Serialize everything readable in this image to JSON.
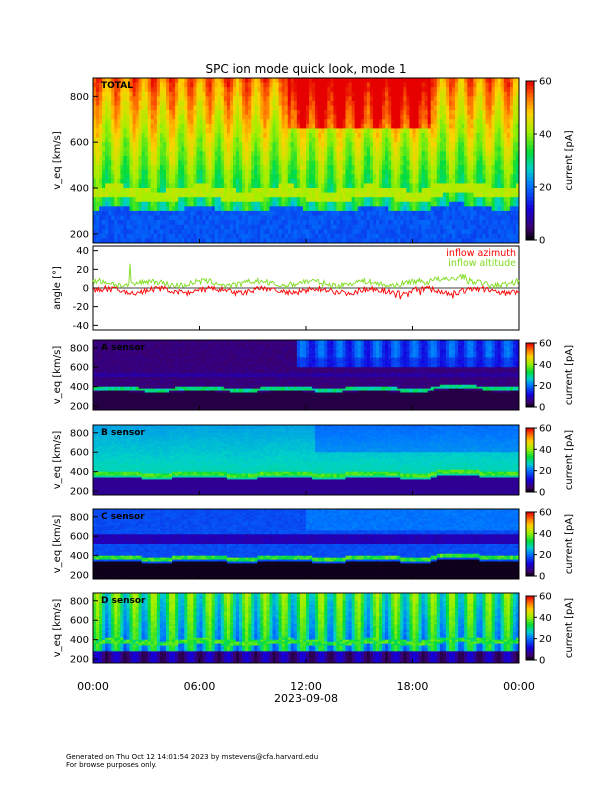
{
  "title": "SPC ion mode quick look, mode 1",
  "footer": {
    "generated": "Generated on Thu Oct 12 14:01:54 2023 by mstevens@cfa.harvard.edu",
    "note": "For browse purposes only."
  },
  "chart_data": [
    {
      "type": "heatmap",
      "panel": "total",
      "label": "TOTAL",
      "ylabel": "v_eq [km/s]",
      "yticks": [
        "200",
        "400",
        "600",
        "800"
      ],
      "ylim": [
        160,
        880
      ],
      "colorbar": {
        "label": "current [pA]",
        "ticks": [
          "0",
          "20",
          "40",
          "60"
        ],
        "range": [
          0,
          60
        ]
      },
      "description_values": {
        "core_speed_kms": 380,
        "background_low_speed_pA": 5,
        "high_speed_pA": 50
      }
    },
    {
      "type": "line",
      "panel": "angle",
      "ylabel": "angle [°]",
      "yticks": [
        "40",
        "20",
        "0",
        "-20",
        "-40"
      ],
      "ylim": [
        -45,
        45
      ],
      "series": [
        {
          "name": "inflow azimuth",
          "color": "#ff0000",
          "mean": -3,
          "spread": 4
        },
        {
          "name": "inflow altitude",
          "color": "#7fdc1e",
          "mean": 5,
          "spread": 4
        }
      ]
    },
    {
      "type": "heatmap",
      "panel": "A",
      "label": "A sensor",
      "ylabel": "v_eq [km/s]",
      "yticks": [
        "200",
        "400",
        "600",
        "800"
      ],
      "ylim": [
        160,
        880
      ],
      "colorbar": {
        "label": "current [pA]",
        "ticks": [
          "0",
          "20",
          "40",
          "60"
        ],
        "range": [
          0,
          60
        ]
      }
    },
    {
      "type": "heatmap",
      "panel": "B",
      "label": "B sensor",
      "ylabel": "v_eq [km/s]",
      "yticks": [
        "200",
        "400",
        "600",
        "800"
      ],
      "ylim": [
        160,
        880
      ],
      "colorbar": {
        "label": "current [pA]",
        "ticks": [
          "0",
          "20",
          "40",
          "60"
        ],
        "range": [
          0,
          60
        ]
      }
    },
    {
      "type": "heatmap",
      "panel": "C",
      "label": "C sensor",
      "ylabel": "v_eq [km/s]",
      "yticks": [
        "200",
        "400",
        "600",
        "800"
      ],
      "ylim": [
        160,
        880
      ],
      "colorbar": {
        "label": "current [pA]",
        "ticks": [
          "0",
          "20",
          "40",
          "60"
        ],
        "range": [
          0,
          60
        ]
      }
    },
    {
      "type": "heatmap",
      "panel": "D",
      "label": "D sensor",
      "ylabel": "v_eq [km/s]",
      "yticks": [
        "200",
        "400",
        "600",
        "800"
      ],
      "ylim": [
        160,
        880
      ],
      "colorbar": {
        "label": "current [pA]",
        "ticks": [
          "0",
          "20",
          "40",
          "60"
        ],
        "range": [
          0,
          60
        ]
      }
    }
  ],
  "xaxis": {
    "ticks": [
      "00:00",
      "06:00",
      "12:00",
      "18:00",
      "00:00"
    ],
    "date": "2023-09-08",
    "range_hours": [
      0,
      24
    ]
  }
}
